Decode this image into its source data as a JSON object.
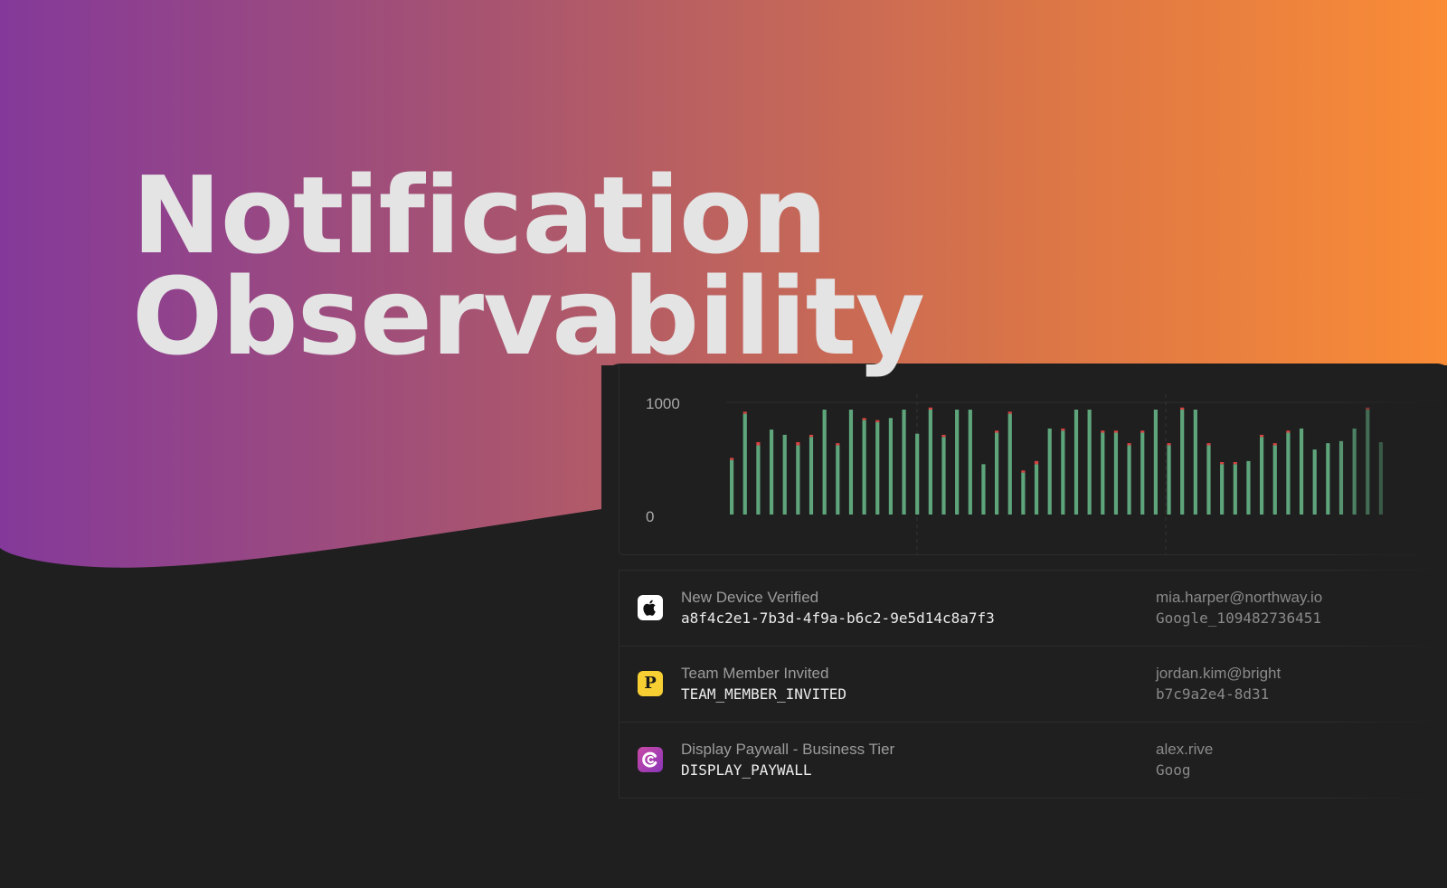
{
  "headline": {
    "line1": "Notification",
    "line2": "Observability"
  },
  "colors": {
    "gradient": [
      "#84399a",
      "#a9556f",
      "#d97448",
      "#fa8c36"
    ],
    "background": "#1f1f1f",
    "bar_success": "#5ea57c",
    "bar_error": "#d64542"
  },
  "chart_data": {
    "type": "bar",
    "stacked": true,
    "ylim": [
      0,
      1000
    ],
    "y_ticks": [
      "1000",
      "0"
    ],
    "grid": true,
    "series": [
      {
        "values": [
          520,
          960,
          660,
          810,
          760,
          660,
          740,
          1000,
          660,
          1000,
          900,
          880,
          920,
          1000,
          770,
          1000,
          740,
          1000,
          1000,
          480,
          780,
          960,
          400,
          480,
          820,
          800,
          1000,
          1000,
          780,
          780,
          660,
          780,
          1000,
          660,
          1000,
          1000,
          660,
          480,
          480,
          510,
          740,
          660,
          780,
          820,
          620,
          680,
          700,
          820,
          1000,
          690
        ]
      },
      {
        "values": [
          20,
          20,
          30,
          0,
          0,
          30,
          20,
          0,
          20,
          0,
          20,
          20,
          0,
          0,
          0,
          20,
          20,
          0,
          0,
          0,
          20,
          20,
          20,
          30,
          0,
          20,
          0,
          0,
          20,
          20,
          20,
          20,
          0,
          20,
          20,
          0,
          20,
          20,
          20,
          0,
          20,
          20,
          20,
          0,
          0,
          0,
          0,
          0,
          20,
          0
        ]
      }
    ]
  },
  "events": [
    {
      "icon": "apple-icon",
      "title": "New Device Verified",
      "code": "a8f4c2e1-7b3d-4f9a-b6c2-9e5d14c8a7f3",
      "user": "mia.harper@northway.io",
      "user_id": "Google_109482736451"
    },
    {
      "icon": "p-badge-icon",
      "icon_letter": "P",
      "title": "Team Member Invited",
      "code": "TEAM_MEMBER_INVITED",
      "user": "jordan.kim@bright",
      "user_id": "b7c9a2e4-8d31"
    },
    {
      "icon": "c-logo-icon",
      "title": "Display Paywall - Business Tier",
      "code": "DISPLAY_PAYWALL",
      "user": "alex.rive",
      "user_id": "Goog"
    }
  ]
}
